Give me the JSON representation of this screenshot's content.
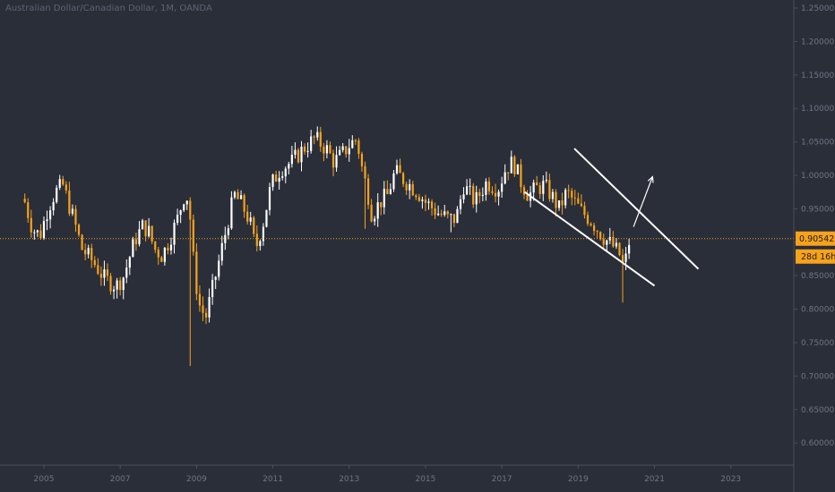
{
  "title": "Australian Dollar/Canadian Dollar, 1M, OANDA",
  "colors": {
    "background": "#2a2e39",
    "bull": "#ffffff",
    "bear": "#f7a21b",
    "price_line": "#f7a21b",
    "channel": "#ffffff",
    "axis_text": "#6f7585",
    "axis_line": "#4a4f5c"
  },
  "price_label": "0.90542",
  "countdown_label": "28d 16h",
  "chart_data": {
    "type": "candlestick",
    "title": "Australian Dollar/Canadian Dollar, 1M, OANDA",
    "interval": "1M",
    "ylim": [
      0.55,
      1.26
    ],
    "xlim": [
      2003.85,
      2024.65
    ],
    "y_ticks": [
      "1.25000",
      "1.20000",
      "1.15000",
      "1.10000",
      "1.05000",
      "1.00000",
      "0.95000",
      "0.90000",
      "0.85000",
      "0.80000",
      "0.75000",
      "0.70000",
      "0.65000",
      "0.60000"
    ],
    "x_ticks": [
      "2005",
      "2007",
      "2009",
      "2011",
      "2013",
      "2015",
      "2017",
      "2019",
      "2021",
      "2023"
    ],
    "current_price": 0.90542,
    "anchors": [
      [
        2004.5,
        0.96
      ],
      [
        2004.7,
        0.92
      ],
      [
        2004.9,
        0.91
      ],
      [
        2005.1,
        0.95
      ],
      [
        2005.3,
        0.975
      ],
      [
        2005.5,
        0.985
      ],
      [
        2005.8,
        0.93
      ],
      [
        2006.0,
        0.89
      ],
      [
        2006.3,
        0.87
      ],
      [
        2006.6,
        0.845
      ],
      [
        2006.9,
        0.835
      ],
      [
        2007.1,
        0.85
      ],
      [
        2007.2,
        0.87
      ],
      [
        2007.4,
        0.905
      ],
      [
        2007.6,
        0.925
      ],
      [
        2007.75,
        0.915
      ],
      [
        2007.9,
        0.89
      ],
      [
        2008.1,
        0.88
      ],
      [
        2008.3,
        0.905
      ],
      [
        2008.5,
        0.935
      ],
      [
        2008.7,
        0.975
      ],
      [
        2008.8,
        0.96
      ],
      [
        2008.95,
        0.85
      ],
      [
        2009.1,
        0.8
      ],
      [
        2009.25,
        0.79
      ],
      [
        2009.5,
        0.85
      ],
      [
        2009.7,
        0.9
      ],
      [
        2009.9,
        0.95
      ],
      [
        2010.0,
        0.97
      ],
      [
        2010.2,
        0.955
      ],
      [
        2010.4,
        0.93
      ],
      [
        2010.55,
        0.89
      ],
      [
        2010.75,
        0.93
      ],
      [
        2010.95,
        0.985
      ],
      [
        2011.2,
        1.01
      ],
      [
        2011.5,
        1.02
      ],
      [
        2011.8,
        1.04
      ],
      [
        2012.1,
        1.055
      ],
      [
        2012.4,
        1.04
      ],
      [
        2012.6,
        1.02
      ],
      [
        2012.8,
        1.03
      ],
      [
        2013.0,
        1.045
      ],
      [
        2013.2,
        1.055
      ],
      [
        2013.3,
        1.02
      ],
      [
        2013.5,
        0.97
      ],
      [
        2013.6,
        0.94
      ],
      [
        2013.8,
        0.96
      ],
      [
        2014.0,
        0.97
      ],
      [
        2014.2,
        1.005
      ],
      [
        2014.5,
        0.99
      ],
      [
        2014.8,
        0.975
      ],
      [
        2015.0,
        0.96
      ],
      [
        2015.3,
        0.945
      ],
      [
        2015.6,
        0.935
      ],
      [
        2015.8,
        0.935
      ],
      [
        2016.0,
        0.985
      ],
      [
        2016.3,
        0.96
      ],
      [
        2016.6,
        0.99
      ],
      [
        2016.9,
        0.98
      ],
      [
        2017.1,
        1.01
      ],
      [
        2017.3,
        1.02
      ],
      [
        2017.5,
        0.99
      ],
      [
        2017.7,
        0.97
      ],
      [
        2017.9,
        0.98
      ],
      [
        2018.1,
        0.985
      ],
      [
        2018.3,
        0.97
      ],
      [
        2018.5,
        0.95
      ],
      [
        2018.7,
        0.975
      ],
      [
        2018.9,
        0.96
      ],
      [
        2019.1,
        0.945
      ],
      [
        2019.3,
        0.935
      ],
      [
        2019.5,
        0.92
      ],
      [
        2019.7,
        0.905
      ],
      [
        2019.9,
        0.895
      ],
      [
        2020.1,
        0.88
      ],
      [
        2020.2,
        0.86
      ],
      [
        2020.3,
        0.89
      ],
      [
        2020.35,
        0.905
      ]
    ],
    "spikes": [
      [
        2008.85,
        0.715
      ],
      [
        2013.45,
        0.92
      ],
      [
        2020.2,
        0.81
      ],
      [
        2006.8,
        0.815
      ],
      [
        2015.7,
        0.915
      ]
    ],
    "annotations": {
      "channel_upper": [
        [
          2018.9,
          1.04
        ],
        [
          2022.15,
          0.86
        ]
      ],
      "channel_lower": [
        [
          2017.6,
          0.975
        ],
        [
          2021.0,
          0.835
        ]
      ],
      "arrow": {
        "from": [
          2020.45,
          0.923
        ],
        "to": [
          2020.95,
          0.998
        ]
      }
    }
  }
}
